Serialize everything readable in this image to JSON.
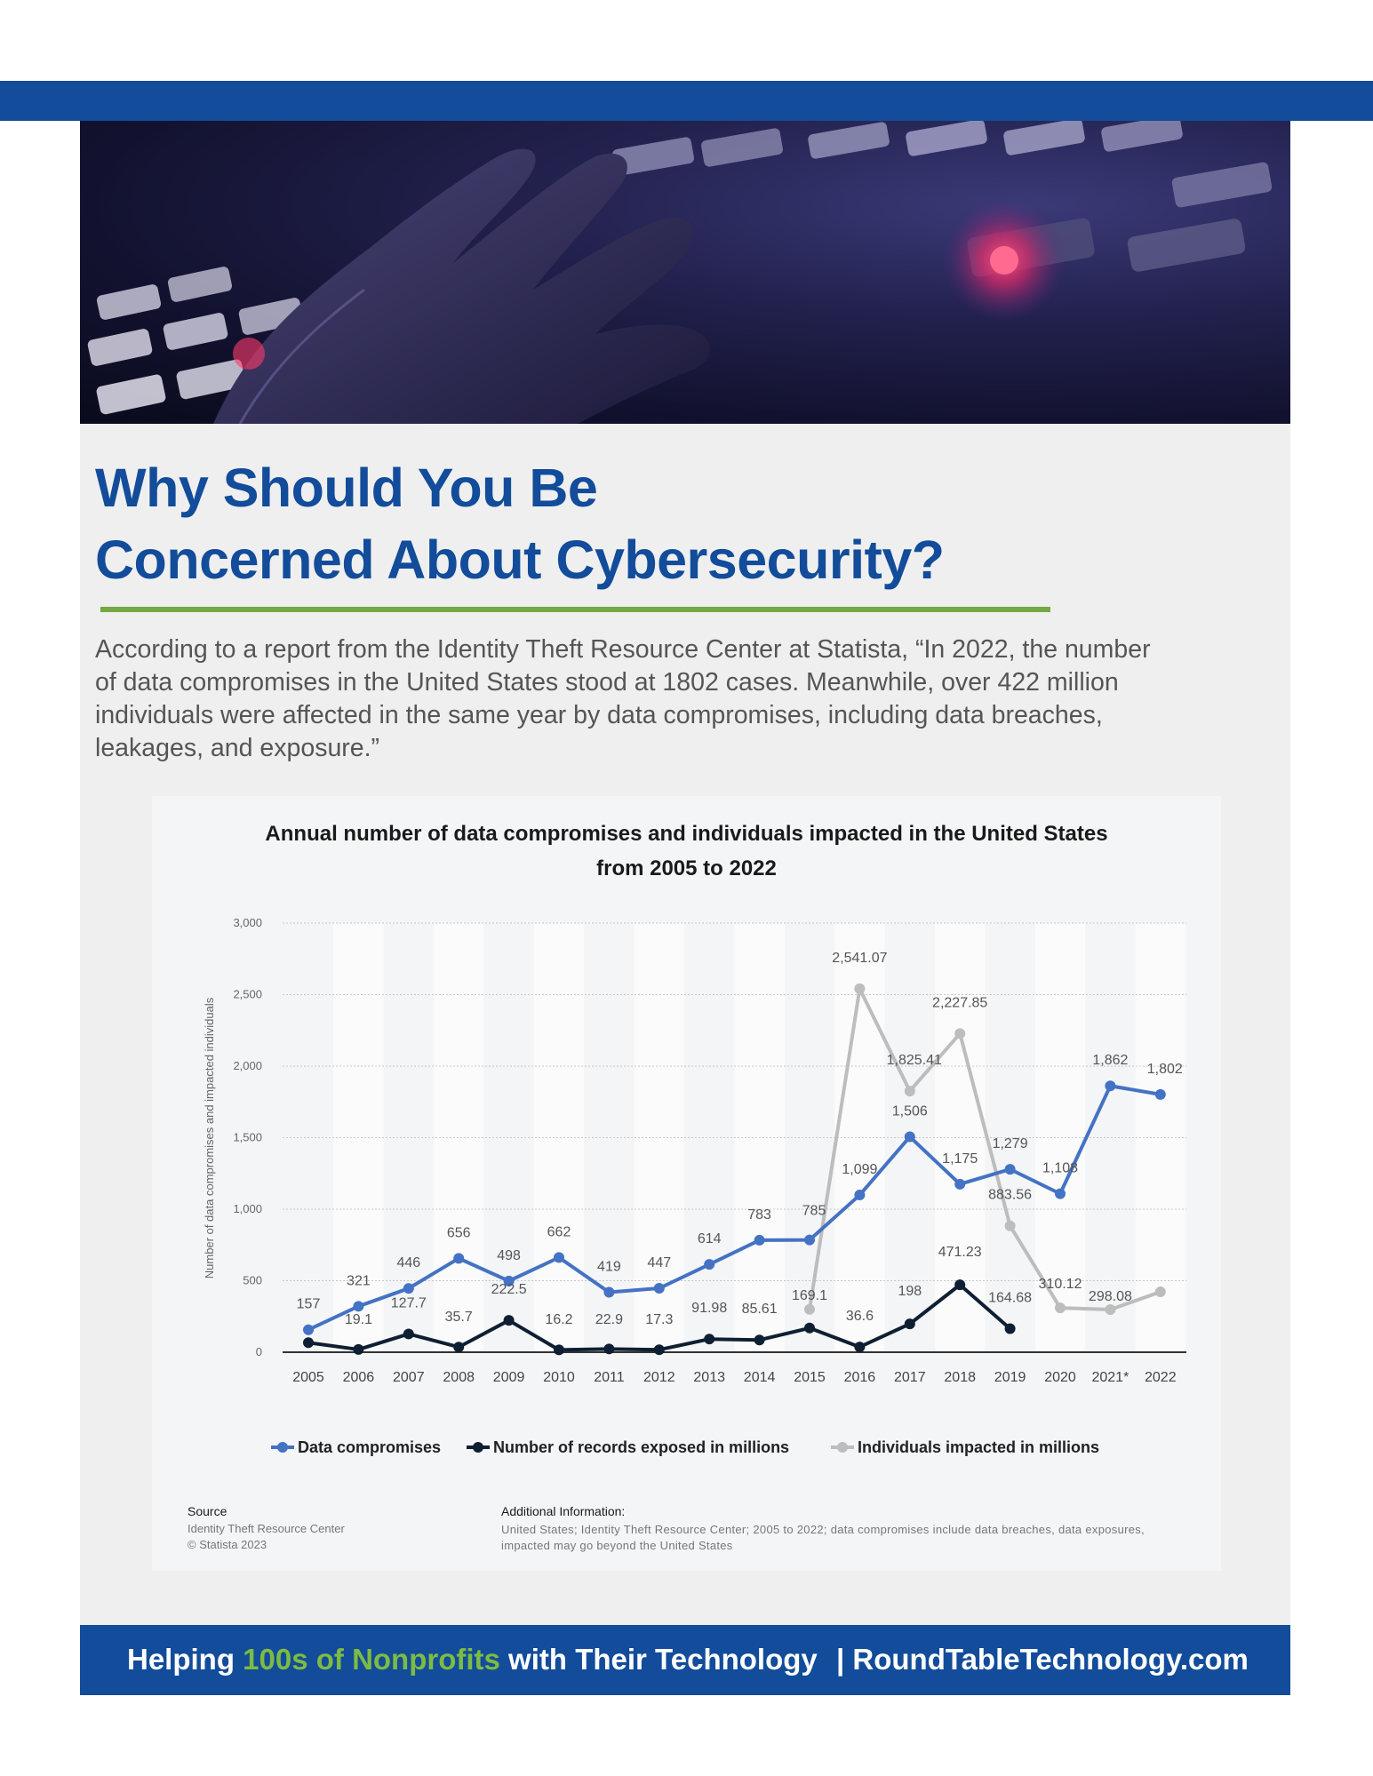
{
  "colors": {
    "brand_blue": "#124c9a",
    "accent_green": "#74a842",
    "footer_green": "#7dbb43",
    "series_compromises": "#4472c4",
    "series_records": "#0f1f33",
    "series_individuals": "#bdbdbd"
  },
  "hero": {
    "image": "hand-on-backlit-keyboard"
  },
  "title": {
    "line1": "Why Should You Be",
    "line2": "Concerned About Cybersecurity?"
  },
  "intro": {
    "lines": [
      "According to a report from the Identity Theft Resource Center at Statista, “In 2022, the number",
      "of data compromises in the United States stood at 1802 cases. Meanwhile, over 422 million",
      "individuals were affected in the same year by data compromises, including data breaches,",
      "leakages, and exposure.”"
    ]
  },
  "chart_data": {
    "type": "line",
    "title_line1": "Annual number of data compromises and individuals impacted in the United States",
    "title_line2": "from 2005 to 2022",
    "ylabel": "Number of data compromises and impacted individuals",
    "ylim": [
      0,
      3000
    ],
    "yticks": [
      "0",
      "500",
      "1,000",
      "1,500",
      "2,000",
      "2,500",
      "3,000"
    ],
    "ytick_values": [
      0,
      500,
      1000,
      1500,
      2000,
      2500,
      3000
    ],
    "categories": [
      "2005",
      "2006",
      "2007",
      "2008",
      "2009",
      "2010",
      "2011",
      "2012",
      "2013",
      "2014",
      "2015",
      "2016",
      "2017",
      "2018",
      "2019",
      "2020",
      "2021*",
      "2022"
    ],
    "grid": true,
    "legend_position": "bottom",
    "series": [
      {
        "name": "Data compromises",
        "values": [
          157,
          321,
          446,
          656,
          498,
          662,
          419,
          447,
          614,
          783,
          785,
          1099,
          1506,
          1175,
          1279,
          1108,
          1862,
          1802
        ],
        "labels": [
          "157",
          "321",
          "446",
          "656",
          "498",
          "662",
          "419",
          "447",
          "614",
          "783",
          "785",
          "1,099",
          "1,506",
          "1,175",
          "1,279",
          "1,108",
          "1,862",
          "1,802"
        ]
      },
      {
        "name": "Number of records exposed in millions",
        "values": [
          66.9,
          19.1,
          127.7,
          35.7,
          222.5,
          16.2,
          22.9,
          17.3,
          91.98,
          85.61,
          169.1,
          36.6,
          198,
          471.23,
          164.68,
          null,
          null,
          null
        ],
        "labels": [
          "",
          "19.1",
          "127.7",
          "35.7",
          "222.5",
          "16.2",
          "22.9",
          "17.3",
          "91.98",
          "85.61",
          "169.1",
          "36.6",
          "198",
          "471.23",
          "164.68",
          "",
          "",
          ""
        ]
      },
      {
        "name": "Individuals impacted in millions",
        "values": [
          null,
          null,
          null,
          null,
          null,
          null,
          null,
          null,
          null,
          null,
          300,
          2541.07,
          1825.41,
          2227.85,
          883.56,
          310.12,
          298.08,
          422
        ],
        "labels": [
          "",
          "",
          "",
          "",
          "",
          "",
          "",
          "",
          "",
          "",
          "",
          "2,541.07",
          "1,825.41",
          "2,227.85",
          "883.56",
          "310.12",
          "298.08",
          ""
        ]
      }
    ]
  },
  "chart_source": {
    "label": "Source",
    "line1": "Identity Theft Resource Center",
    "line2": "© Statista 2023"
  },
  "chart_info": {
    "label": "Additional Information:",
    "line1": "United States; Identity Theft Resource Center; 2005 to 2022; data compromises include data breaches, data exposures,",
    "line2": "impacted may go beyond the United States"
  },
  "footer": {
    "part1": "Helping ",
    "part2": "100s of Nonprofits",
    "part3": " with Their Technology",
    "site": "| RoundTableTechnology.com"
  }
}
